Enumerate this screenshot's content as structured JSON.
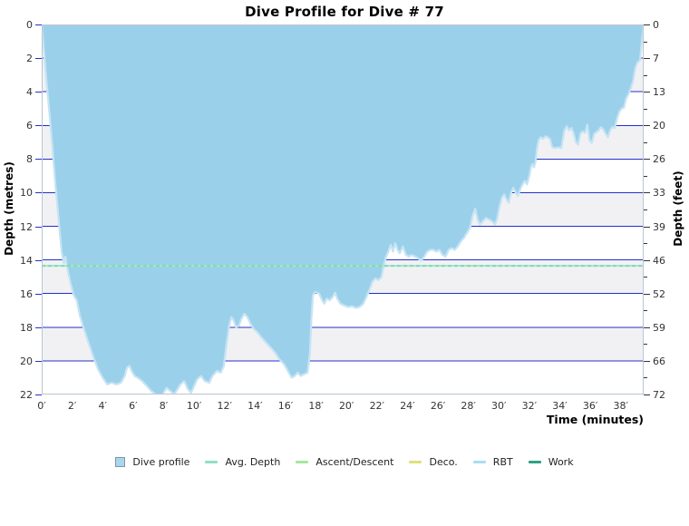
{
  "title": "Dive Profile for Dive # 77",
  "axes": {
    "left": {
      "label": "Depth (metres)",
      "ticks": [
        0,
        2,
        4,
        6,
        8,
        10,
        12,
        14,
        16,
        18,
        20,
        22
      ]
    },
    "right": {
      "label": "Depth (feet)",
      "ticks": [
        0,
        7,
        13,
        20,
        26,
        33,
        39,
        46,
        52,
        59,
        66,
        72
      ],
      "at_metres": [
        0,
        2,
        4,
        6,
        8,
        10,
        12,
        14,
        16,
        18,
        20,
        22
      ],
      "minor_at_metres": [
        1,
        3,
        5,
        7,
        9,
        11,
        13,
        15,
        17,
        19,
        21
      ]
    },
    "x": {
      "label": "Time (minutes)",
      "ticks": [
        "0′",
        "2′",
        "4′",
        "6′",
        "8′",
        "10′",
        "12′",
        "14′",
        "16′",
        "18′",
        "20′",
        "22′",
        "24′",
        "26′",
        "28′",
        "30′",
        "32′",
        "34′",
        "36′",
        "38′"
      ],
      "minutes": [
        0,
        2,
        4,
        6,
        8,
        10,
        12,
        14,
        16,
        18,
        20,
        22,
        24,
        26,
        28,
        30,
        32,
        34,
        36,
        38
      ]
    }
  },
  "chart_data": {
    "type": "area",
    "title": "Dive Profile for Dive # 77",
    "xlabel": "Time (minutes)",
    "ylabel_left": "Depth (metres)",
    "ylabel_right": "Depth (feet)",
    "xlim": [
      0,
      39.5
    ],
    "ylim_metres": [
      0,
      22
    ],
    "y_inverted": true,
    "grid": true,
    "gridlines_metres": [
      2,
      4,
      6,
      8,
      10,
      12,
      14,
      16,
      18,
      20
    ],
    "band_gray_metres": [
      [
        2,
        4
      ],
      [
        6,
        8
      ],
      [
        10,
        12
      ],
      [
        14,
        16
      ],
      [
        18,
        20
      ]
    ],
    "avg_depth_m": 14.35,
    "series": [
      {
        "name": "Dive profile",
        "points": [
          [
            0,
            0
          ],
          [
            0.15,
            1.6
          ],
          [
            0.3,
            3.2
          ],
          [
            0.5,
            5.2
          ],
          [
            0.7,
            7.3
          ],
          [
            0.9,
            9.5
          ],
          [
            1.1,
            11.5
          ],
          [
            1.3,
            13.5
          ],
          [
            1.45,
            14.2
          ],
          [
            1.55,
            13.8
          ],
          [
            1.7,
            14.6
          ],
          [
            1.9,
            15.4
          ],
          [
            2.1,
            16.1
          ],
          [
            2.3,
            16.4
          ],
          [
            2.5,
            17.3
          ],
          [
            2.8,
            18.2
          ],
          [
            3.1,
            19.0
          ],
          [
            3.4,
            19.8
          ],
          [
            3.7,
            20.5
          ],
          [
            4.0,
            21.0
          ],
          [
            4.3,
            21.4
          ],
          [
            4.6,
            21.3
          ],
          [
            4.9,
            21.4
          ],
          [
            5.2,
            21.3
          ],
          [
            5.45,
            20.9
          ],
          [
            5.6,
            20.4
          ],
          [
            5.75,
            20.3
          ],
          [
            5.9,
            20.6
          ],
          [
            6.1,
            20.9
          ],
          [
            6.3,
            21.0
          ],
          [
            6.6,
            21.2
          ],
          [
            6.9,
            21.5
          ],
          [
            7.2,
            21.8
          ],
          [
            7.5,
            22.0
          ],
          [
            7.8,
            22.15
          ],
          [
            8.0,
            21.9
          ],
          [
            8.2,
            21.6
          ],
          [
            8.45,
            21.8
          ],
          [
            8.7,
            22.0
          ],
          [
            8.9,
            21.7
          ],
          [
            9.1,
            21.4
          ],
          [
            9.35,
            21.2
          ],
          [
            9.6,
            21.7
          ],
          [
            9.8,
            21.9
          ],
          [
            10.0,
            21.5
          ],
          [
            10.2,
            21.1
          ],
          [
            10.45,
            20.9
          ],
          [
            10.7,
            21.2
          ],
          [
            11.0,
            21.3
          ],
          [
            11.2,
            20.9
          ],
          [
            11.5,
            20.6
          ],
          [
            11.75,
            20.7
          ],
          [
            11.95,
            20.3
          ],
          [
            12.1,
            19.2
          ],
          [
            12.3,
            17.9
          ],
          [
            12.45,
            17.4
          ],
          [
            12.6,
            17.6
          ],
          [
            12.75,
            18.0
          ],
          [
            12.95,
            17.9
          ],
          [
            13.1,
            17.5
          ],
          [
            13.3,
            17.2
          ],
          [
            13.5,
            17.4
          ],
          [
            13.7,
            17.8
          ],
          [
            13.9,
            18.1
          ],
          [
            14.15,
            18.3
          ],
          [
            14.4,
            18.6
          ],
          [
            14.7,
            18.9
          ],
          [
            15.0,
            19.2
          ],
          [
            15.3,
            19.5
          ],
          [
            15.6,
            19.9
          ],
          [
            15.9,
            20.2
          ],
          [
            16.15,
            20.6
          ],
          [
            16.4,
            21.0
          ],
          [
            16.6,
            20.9
          ],
          [
            16.8,
            20.7
          ],
          [
            17.0,
            20.9
          ],
          [
            17.2,
            20.8
          ],
          [
            17.45,
            20.7
          ],
          [
            17.6,
            19.5
          ],
          [
            17.7,
            17.5
          ],
          [
            17.8,
            16.1
          ],
          [
            17.95,
            15.9
          ],
          [
            18.2,
            16.0
          ],
          [
            18.4,
            16.4
          ],
          [
            18.55,
            16.6
          ],
          [
            18.7,
            16.3
          ],
          [
            18.9,
            16.4
          ],
          [
            19.1,
            16.2
          ],
          [
            19.25,
            15.95
          ],
          [
            19.4,
            16.3
          ],
          [
            19.6,
            16.6
          ],
          [
            19.85,
            16.7
          ],
          [
            20.1,
            16.8
          ],
          [
            20.35,
            16.75
          ],
          [
            20.6,
            16.85
          ],
          [
            20.85,
            16.8
          ],
          [
            21.1,
            16.6
          ],
          [
            21.3,
            16.2
          ],
          [
            21.5,
            15.8
          ],
          [
            21.7,
            15.3
          ],
          [
            21.9,
            15.1
          ],
          [
            22.1,
            15.2
          ],
          [
            22.3,
            15.0
          ],
          [
            22.45,
            14.3
          ],
          [
            22.6,
            13.8
          ],
          [
            22.75,
            13.5
          ],
          [
            22.9,
            13.1
          ],
          [
            23.05,
            13.5
          ],
          [
            23.2,
            13.0
          ],
          [
            23.35,
            13.4
          ],
          [
            23.5,
            13.6
          ],
          [
            23.7,
            13.2
          ],
          [
            23.9,
            13.7
          ],
          [
            24.1,
            13.8
          ],
          [
            24.3,
            13.7
          ],
          [
            24.5,
            13.8
          ],
          [
            24.7,
            13.9
          ],
          [
            24.9,
            14.05
          ],
          [
            25.1,
            13.8
          ],
          [
            25.3,
            13.5
          ],
          [
            25.5,
            13.4
          ],
          [
            25.7,
            13.4
          ],
          [
            25.9,
            13.5
          ],
          [
            26.1,
            13.4
          ],
          [
            26.3,
            13.7
          ],
          [
            26.5,
            13.8
          ],
          [
            26.7,
            13.4
          ],
          [
            26.9,
            13.3
          ],
          [
            27.1,
            13.4
          ],
          [
            27.3,
            13.2
          ],
          [
            27.5,
            12.9
          ],
          [
            27.7,
            12.7
          ],
          [
            27.9,
            12.4
          ],
          [
            28.1,
            12.1
          ],
          [
            28.3,
            11.3
          ],
          [
            28.45,
            10.95
          ],
          [
            28.6,
            11.6
          ],
          [
            28.75,
            11.9
          ],
          [
            28.95,
            11.7
          ],
          [
            29.15,
            11.5
          ],
          [
            29.35,
            11.6
          ],
          [
            29.55,
            11.7
          ],
          [
            29.75,
            11.9
          ],
          [
            29.9,
            11.5
          ],
          [
            30.05,
            10.8
          ],
          [
            30.2,
            10.3
          ],
          [
            30.35,
            10.1
          ],
          [
            30.5,
            10.4
          ],
          [
            30.65,
            10.6
          ],
          [
            30.8,
            10.0
          ],
          [
            30.95,
            9.7
          ],
          [
            31.1,
            10.0
          ],
          [
            31.25,
            10.2
          ],
          [
            31.4,
            9.8
          ],
          [
            31.55,
            9.5
          ],
          [
            31.7,
            9.3
          ],
          [
            31.85,
            9.5
          ],
          [
            32.0,
            9.0
          ],
          [
            32.1,
            8.5
          ],
          [
            32.2,
            8.3
          ],
          [
            32.3,
            8.5
          ],
          [
            32.4,
            8.2
          ],
          [
            32.5,
            7.4
          ],
          [
            32.6,
            6.9
          ],
          [
            32.75,
            6.7
          ],
          [
            32.9,
            6.8
          ],
          [
            33.05,
            6.65
          ],
          [
            33.2,
            6.7
          ],
          [
            33.35,
            6.8
          ],
          [
            33.5,
            7.3
          ],
          [
            33.7,
            7.35
          ],
          [
            33.9,
            7.3
          ],
          [
            34.1,
            7.35
          ],
          [
            34.3,
            6.3
          ],
          [
            34.45,
            6.05
          ],
          [
            34.6,
            6.3
          ],
          [
            34.75,
            6.15
          ],
          [
            34.9,
            6.45
          ],
          [
            35.05,
            7.0
          ],
          [
            35.2,
            7.15
          ],
          [
            35.35,
            6.5
          ],
          [
            35.5,
            6.35
          ],
          [
            35.65,
            6.45
          ],
          [
            35.8,
            5.95
          ],
          [
            35.95,
            6.9
          ],
          [
            36.1,
            7.05
          ],
          [
            36.25,
            6.5
          ],
          [
            36.4,
            6.4
          ],
          [
            36.55,
            6.3
          ],
          [
            36.7,
            6.1
          ],
          [
            36.85,
            6.25
          ],
          [
            37.0,
            6.5
          ],
          [
            37.15,
            6.7
          ],
          [
            37.3,
            6.3
          ],
          [
            37.45,
            6.1
          ],
          [
            37.6,
            6.15
          ],
          [
            37.75,
            5.6
          ],
          [
            37.9,
            5.2
          ],
          [
            38.05,
            5.0
          ],
          [
            38.2,
            4.95
          ],
          [
            38.35,
            4.4
          ],
          [
            38.5,
            4.15
          ],
          [
            38.65,
            3.8
          ],
          [
            38.8,
            3.4
          ],
          [
            38.95,
            2.6
          ],
          [
            39.1,
            2.25
          ],
          [
            39.25,
            2.15
          ],
          [
            39.35,
            1.3
          ],
          [
            39.45,
            0.4
          ],
          [
            39.5,
            0
          ]
        ]
      }
    ],
    "legend_position": "bottom"
  },
  "legend": {
    "items": [
      {
        "label": "Dive profile",
        "swatch": "square",
        "color": "#a9d6ec",
        "border": "#8096a6"
      },
      {
        "label": "Avg. Depth",
        "swatch": "line",
        "color": "#8fdfc9"
      },
      {
        "label": "Ascent/Descent",
        "swatch": "line",
        "color": "#a8e7a0"
      },
      {
        "label": "Deco.",
        "swatch": "line",
        "color": "#dde17c"
      },
      {
        "label": "RBT",
        "swatch": "line",
        "color": "#abdcf3"
      },
      {
        "label": "Work",
        "swatch": "line",
        "color": "#2ea183"
      }
    ]
  },
  "colors": {
    "area_fill": "#9bd0ea",
    "area_stroke": "#c6e4f4",
    "band_gray": "#f1f1f4",
    "gridline_blue": "#2531c8",
    "frame": "#bac6d0",
    "tick_text": "#333333",
    "avg_line_base": "#a8eab0",
    "avg_line_dash": "#7ed8c8",
    "background": "#ffffff"
  }
}
